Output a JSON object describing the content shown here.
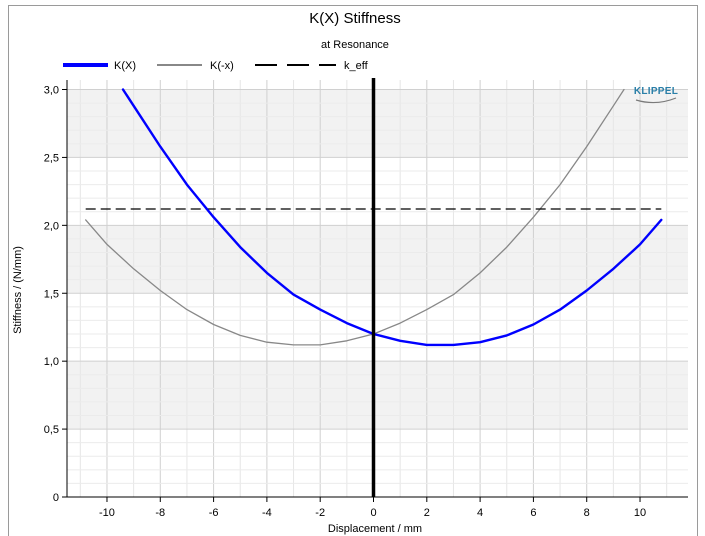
{
  "chart_data": {
    "type": "line",
    "title": "K(X) Stiffness",
    "subtitle": "at Resonance",
    "xlabel": "Displacement / mm",
    "ylabel": "Stiffness / (N/mm)",
    "xlim": [
      -11.5,
      11.8
    ],
    "ylim": [
      0,
      3.07
    ],
    "x_ticks": [
      -10,
      -8,
      -6,
      -4,
      -2,
      0,
      2,
      4,
      6,
      8,
      10
    ],
    "y_ticks": [
      0,
      0.5,
      1.0,
      1.5,
      2.0,
      2.5,
      3.0
    ],
    "x_tick_labels": [
      "-10",
      "-8",
      "-6",
      "-4",
      "-2",
      "0",
      "2",
      "4",
      "6",
      "8",
      "10"
    ],
    "y_tick_labels": [
      "0",
      "0,5",
      "1,0",
      "1,5",
      "2,0",
      "2,5",
      "3,0"
    ],
    "grid": true,
    "legend_position": "top",
    "brand": "KLIPPEL",
    "vertical_marker_x": 0,
    "series": [
      {
        "name": "K(X)",
        "color": "#0000ff",
        "style": "solid-thick",
        "x": [
          -9.4,
          -8,
          -7,
          -6,
          -5,
          -4,
          -3,
          -2,
          -1,
          0,
          1,
          2,
          3,
          4,
          5,
          6,
          7,
          8,
          9,
          10,
          10.8
        ],
        "y": [
          3.0,
          2.58,
          2.3,
          2.06,
          1.84,
          1.65,
          1.49,
          1.38,
          1.28,
          1.2,
          1.15,
          1.12,
          1.12,
          1.14,
          1.19,
          1.27,
          1.38,
          1.52,
          1.68,
          1.86,
          2.04
        ]
      },
      {
        "name": "K(-x)",
        "color": "#888888",
        "style": "solid-thin",
        "x": [
          -10.8,
          -10,
          -9,
          -8,
          -7,
          -6,
          -5,
          -4,
          -3,
          -2,
          -1,
          0,
          1,
          2,
          3,
          4,
          5,
          6,
          7,
          8,
          9,
          9.4
        ],
        "y": [
          2.04,
          1.86,
          1.68,
          1.52,
          1.38,
          1.27,
          1.19,
          1.14,
          1.12,
          1.12,
          1.15,
          1.2,
          1.28,
          1.38,
          1.49,
          1.65,
          1.84,
          2.06,
          2.3,
          2.58,
          2.88,
          3.0
        ]
      },
      {
        "name": "k_eff",
        "color": "#000000",
        "style": "dashed",
        "x": [
          -10.8,
          10.8
        ],
        "y": [
          2.12,
          2.12
        ]
      }
    ]
  }
}
